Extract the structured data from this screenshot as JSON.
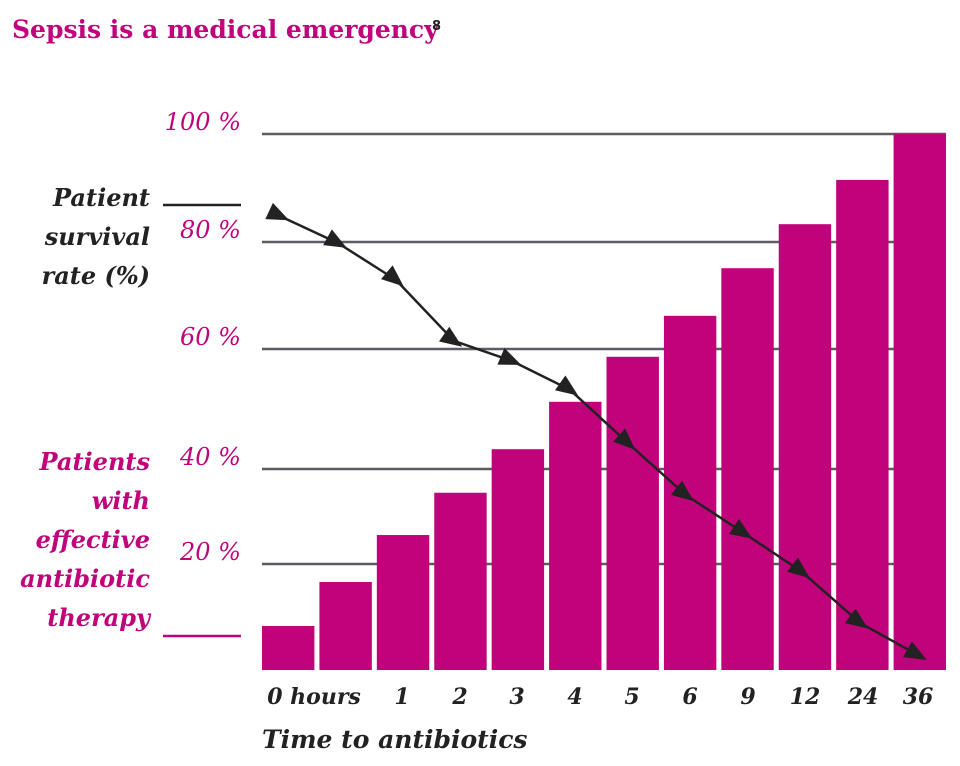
{
  "chart_data": {
    "type": "bar",
    "title": "Sepsis is a medical emergency",
    "title_reference": "8",
    "xlabel": "Time to antibiotics",
    "categories": [
      "0 hours",
      "1",
      "2",
      "3",
      "4",
      "5",
      "6",
      "9",
      "12",
      "24",
      "36"
    ],
    "y_ticks": [
      {
        "value": 100,
        "label": "100 %"
      },
      {
        "value": 80,
        "label": "80 %"
      },
      {
        "value": 60,
        "label": "60 %"
      },
      {
        "value": 40,
        "label": "40 %"
      },
      {
        "value": 20,
        "label": "20 %"
      }
    ],
    "ylim": [
      0,
      100
    ],
    "grid": true,
    "legend_placement": "left",
    "series": [
      {
        "name": "Patients with effective antibiotic therapy",
        "legend_lines": [
          "Patients",
          "with",
          "effective",
          "antibiotic",
          "therapy"
        ],
        "type": "bar",
        "color": "#c0037a",
        "values": [
          8.3,
          16.6,
          26.1,
          35.0,
          43.3,
          51.2,
          58.7,
          66.2,
          75.1,
          83.3,
          91.5,
          100
        ]
      },
      {
        "name": "Patient survival rate (%)",
        "legend_lines": [
          "Patient",
          "survival",
          "rate (%)"
        ],
        "type": "line",
        "marker": "triangle",
        "color": "#222222",
        "values": [
          84.8,
          79.8,
          72.9,
          61.5,
          58.0,
          53.2,
          44.3,
          34.5,
          26.5,
          18.5,
          8.9,
          2.8
        ]
      }
    ],
    "note": "12 bars/points shown against 11 category labels as drawn"
  },
  "colors": {
    "accent": "#c0037a",
    "ink": "#222222",
    "grid": "#5a5d66"
  }
}
